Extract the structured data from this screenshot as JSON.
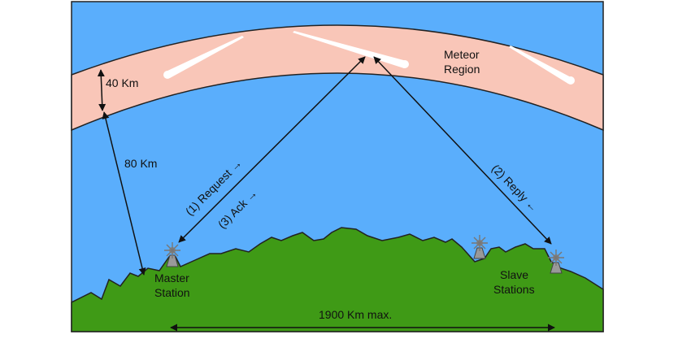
{
  "labels": {
    "meteor_region_line1": "Meteor",
    "meteor_region_line2": "Region",
    "layer_thickness": "40 Km",
    "altitude": "80 Km",
    "request": "(1) Request →",
    "ack": "(3) Ack →",
    "reply": "(2) Reply ←",
    "master_line1": "Master",
    "master_line2": "Station",
    "slave_line1": "Slave",
    "slave_line2": "Stations",
    "distance": "1900 Km max."
  },
  "colors": {
    "sky": "#5aaefc",
    "meteor_band": "#f9c6b8",
    "ground": "#3f9a16",
    "outline": "#222222",
    "meteor_trail": "#ffffff",
    "station": "#999999"
  },
  "icons": [
    "meteor-trail",
    "radio-station",
    "double-arrow"
  ]
}
